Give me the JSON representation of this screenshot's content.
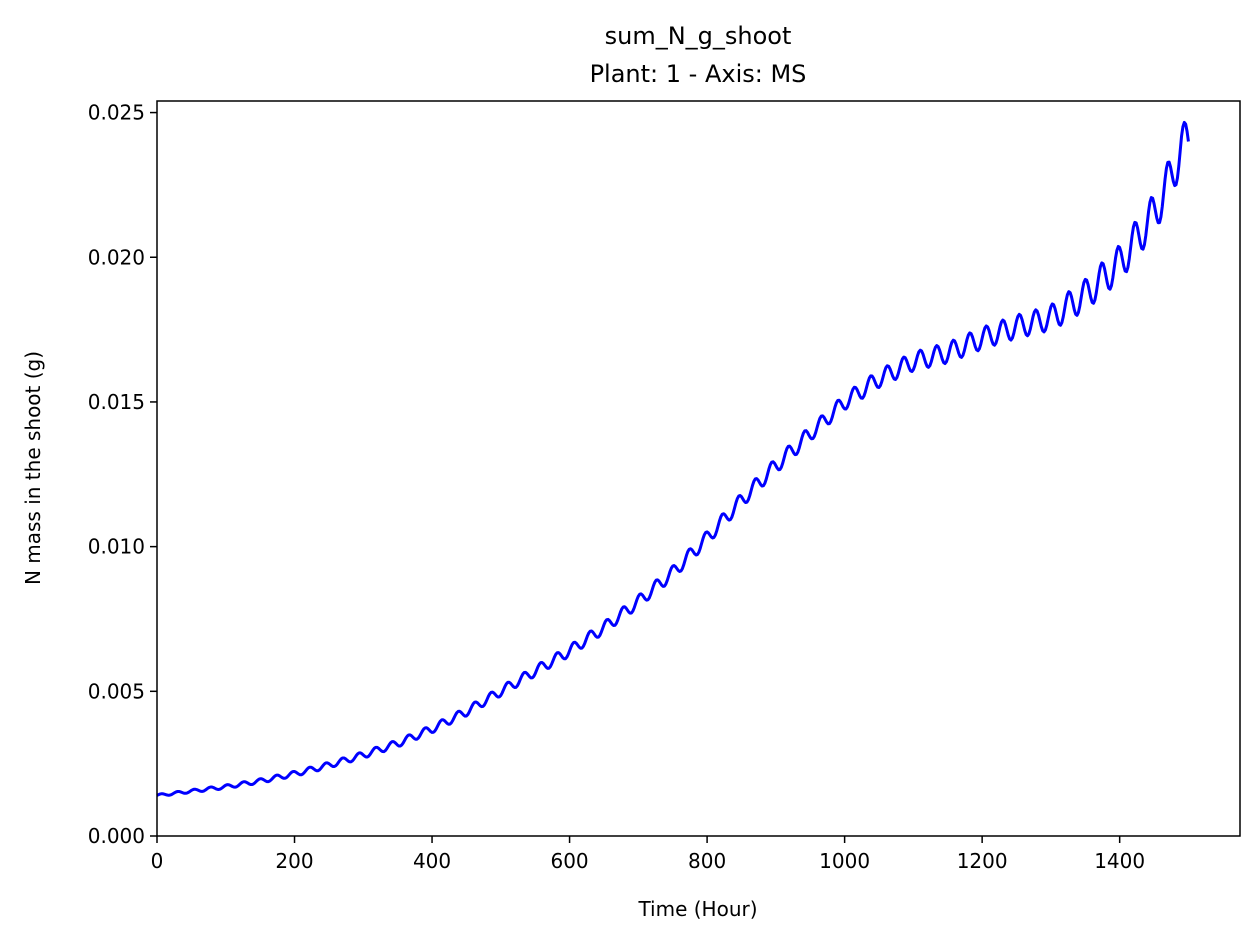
{
  "chart_data": {
    "type": "line",
    "title": "sum_N_g_shoot",
    "subtitle": "Plant: 1 - Axis: MS",
    "xlabel": "Time (Hour)",
    "ylabel": "N mass in the shoot (g)",
    "xlim": [
      0,
      1575
    ],
    "ylim": [
      0,
      0.0254
    ],
    "xticks": [
      0,
      200,
      400,
      600,
      800,
      1000,
      1200,
      1400
    ],
    "xtick_labels": [
      "0",
      "200",
      "400",
      "600",
      "800",
      "1000",
      "1200",
      "1400"
    ],
    "yticks": [
      0,
      0.005,
      0.01,
      0.015,
      0.02,
      0.025
    ],
    "ytick_labels": [
      "0.000",
      "0.005",
      "0.010",
      "0.015",
      "0.020",
      "0.025"
    ],
    "grid": false,
    "line_color": "#0000ff",
    "series": [
      {
        "x": [
          0,
          50,
          100,
          150,
          200,
          250,
          300,
          350,
          400,
          450,
          500,
          550,
          600,
          650,
          700,
          750,
          800,
          850,
          900,
          950,
          1000,
          1050,
          1100,
          1150,
          1200,
          1250,
          1300,
          1350,
          1400,
          1450,
          1475,
          1490,
          1500
        ],
        "y": [
          0.0014,
          0.00155,
          0.0017,
          0.0019,
          0.00215,
          0.00245,
          0.0028,
          0.0032,
          0.0037,
          0.0043,
          0.005,
          0.0057,
          0.0064,
          0.0072,
          0.0081,
          0.0091,
          0.0103,
          0.0116,
          0.0128,
          0.0139,
          0.015,
          0.0158,
          0.0164,
          0.0167,
          0.0172,
          0.0176,
          0.0179,
          0.0187,
          0.0198,
          0.0215,
          0.0228,
          0.0238,
          0.024
        ]
      }
    ]
  }
}
